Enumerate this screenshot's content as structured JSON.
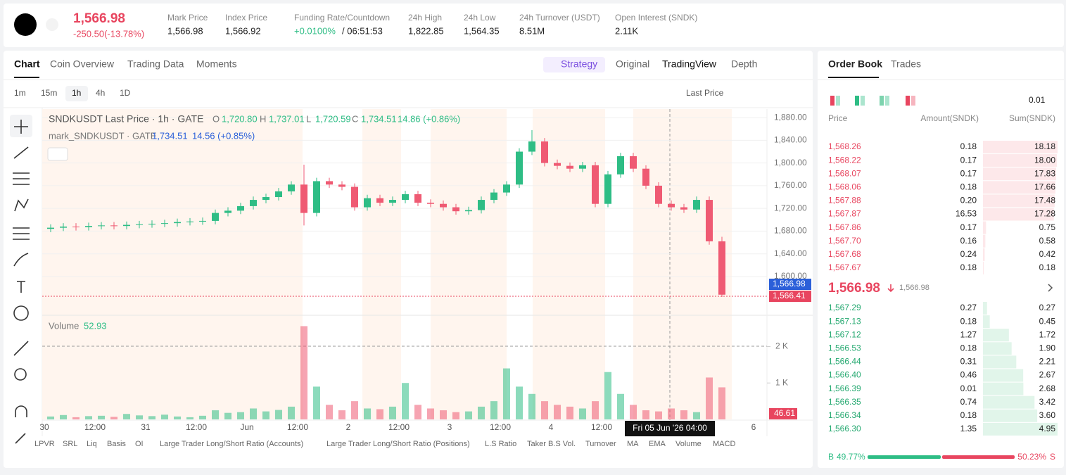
{
  "header": {
    "price": "1,566.98",
    "change": "-250.50(-13.78%)",
    "stats": [
      {
        "label": "Mark Price",
        "value": "1,566.98"
      },
      {
        "label": "Index Price",
        "value": "1,566.92"
      },
      {
        "label": "Funding Rate/Countdown",
        "value": "+0.0100%",
        "countdown": "/ 06:51:53"
      },
      {
        "label": "24h High",
        "value": "1,822.85"
      },
      {
        "label": "24h Low",
        "value": "1,564.35"
      },
      {
        "label": "24h Turnover (USDT)",
        "value": "8.51M"
      },
      {
        "label": "Open Interest (SNDK)",
        "value": "2.11K"
      }
    ]
  },
  "tabs": [
    "Chart",
    "Coin Overview",
    "Trading Data",
    "Moments"
  ],
  "views": [
    "Strategy",
    "Original",
    "TradingView",
    "Depth"
  ],
  "intervals": [
    "1m",
    "15m",
    "1h",
    "4h",
    "1D"
  ],
  "price_source": "Last Price",
  "indicators": [
    "LPVR",
    "SRL",
    "Liq",
    "Basis",
    "OI",
    "Large Trader Long/Short Ratio (Accounts)",
    "Large Trader Long/Short Ratio (Positions)",
    "L.S Ratio",
    "Taker B.S Vol.",
    "Turnover",
    "MA",
    "EMA",
    "Volume",
    "MACD"
  ],
  "chart_data": {
    "type": "candlestick",
    "title": "SNDKUSDT Last Price · 1h · GATE",
    "ohlc_legend": [
      {
        "key": "O",
        "value": "1,720.80"
      },
      {
        "key": "H",
        "value": "1,737.01"
      },
      {
        "key": "L",
        "value": "1,720.59"
      },
      {
        "key": "C",
        "value": "1,734.51"
      }
    ],
    "legend_change": "14.86 (+0.86%)",
    "mark_legend": {
      "name": "mark_SNDKUSDT · GATE",
      "value": "1,734.51",
      "change": "14.56 (+0.85%)"
    },
    "up_color": "#2ebd85",
    "down_color": "#ef5a73",
    "open": [
      1684,
      1686,
      1688,
      1687,
      1689,
      1690,
      1689,
      1691,
      1692,
      1693,
      1694,
      1696,
      1697,
      1698,
      1712,
      1716,
      1724,
      1735,
      1740,
      1750,
      1762,
      1712,
      1768,
      1762,
      1758,
      1722,
      1738,
      1730,
      1735,
      1745,
      1730,
      1728,
      1722,
      1715,
      1717,
      1735,
      1748,
      1762,
      1820,
      1838,
      1800,
      1795,
      1790,
      1796,
      1728,
      1780,
      1812,
      1790,
      1760,
      1728,
      1722,
      1718,
      1735,
      1662
    ],
    "high": [
      1692,
      1694,
      1694,
      1695,
      1696,
      1696,
      1697,
      1698,
      1699,
      1700,
      1702,
      1703,
      1704,
      1718,
      1722,
      1730,
      1741,
      1746,
      1756,
      1768,
      1797,
      1774,
      1774,
      1768,
      1764,
      1744,
      1744,
      1741,
      1751,
      1751,
      1736,
      1734,
      1728,
      1723,
      1741,
      1754,
      1768,
      1826,
      1858,
      1844,
      1806,
      1801,
      1802,
      1802,
      1786,
      1818,
      1818,
      1796,
      1766,
      1734,
      1728,
      1741,
      1741,
      1670
    ],
    "low": [
      1678,
      1680,
      1681,
      1681,
      1683,
      1683,
      1683,
      1685,
      1686,
      1687,
      1688,
      1690,
      1691,
      1692,
      1706,
      1710,
      1718,
      1729,
      1734,
      1744,
      1690,
      1706,
      1756,
      1752,
      1716,
      1716,
      1724,
      1724,
      1729,
      1724,
      1722,
      1716,
      1709,
      1709,
      1711,
      1729,
      1742,
      1756,
      1814,
      1794,
      1789,
      1784,
      1784,
      1722,
      1722,
      1774,
      1784,
      1754,
      1722,
      1716,
      1712,
      1712,
      1656,
      1564
    ],
    "close": [
      1686,
      1688,
      1687,
      1689,
      1690,
      1689,
      1691,
      1692,
      1693,
      1694,
      1696,
      1697,
      1698,
      1712,
      1716,
      1724,
      1735,
      1740,
      1750,
      1762,
      1712,
      1768,
      1762,
      1758,
      1722,
      1738,
      1730,
      1735,
      1745,
      1730,
      1728,
      1722,
      1715,
      1717,
      1735,
      1748,
      1762,
      1820,
      1838,
      1800,
      1795,
      1790,
      1796,
      1728,
      1780,
      1812,
      1790,
      1760,
      1728,
      1722,
      1718,
      1735,
      1662,
      1568
    ],
    "ylim": [
      1533,
      1895
    ],
    "yticks": [
      {
        "value": 1600,
        "label": "1,600.00"
      },
      {
        "value": 1640,
        "label": "1,640.00"
      },
      {
        "value": 1680,
        "label": "1,680.00"
      },
      {
        "value": 1720,
        "label": "1,720.00"
      },
      {
        "value": 1760,
        "label": "1,760.00"
      },
      {
        "value": 1800,
        "label": "1,800.00"
      },
      {
        "value": 1840,
        "label": "1,840.00"
      },
      {
        "value": 1880,
        "label": "1,880.00"
      }
    ],
    "price_tags": [
      "1,566.98",
      "1,566.41"
    ],
    "volume_label": "Volume",
    "volume_value": "52.93",
    "volume_tag": "46.61",
    "volume": [
      80,
      120,
      60,
      90,
      100,
      70,
      150,
      110,
      90,
      130,
      80,
      60,
      100,
      250,
      180,
      200,
      300,
      220,
      260,
      350,
      2560,
      900,
      400,
      250,
      500,
      300,
      280,
      350,
      1000,
      400,
      300,
      250,
      200,
      220,
      350,
      500,
      1400,
      900,
      700,
      500,
      400,
      350,
      300,
      500,
      1300,
      700,
      400,
      250,
      220,
      300,
      250,
      200,
      1150,
      880
    ],
    "vol_ylim": [
      0,
      2820
    ],
    "vol_ticks": [
      {
        "value": 1000,
        "label": "1 K"
      },
      {
        "value": 2000,
        "label": "2 K"
      }
    ],
    "x_labels": [
      "30",
      "12:00",
      "31",
      "12:00",
      "Jun",
      "12:00",
      "2",
      "12:00",
      "3",
      "12:00",
      "4",
      "12:00",
      null,
      null,
      "6"
    ],
    "crosshair_label": "Fri 05 Jun '26  04:00"
  },
  "order_book": {
    "tabs": [
      "Order Book",
      "Trades"
    ],
    "precision": "0.01",
    "columns": [
      "Price",
      "Amount(SNDK)",
      "Sum(SNDK)"
    ],
    "asks": {
      "prices": [
        "1,568.26",
        "1,568.22",
        "1,568.07",
        "1,568.06",
        "1,567.88",
        "1,567.87",
        "1,567.86",
        "1,567.70",
        "1,567.68",
        "1,567.67"
      ],
      "amounts": [
        "0.18",
        "0.17",
        "0.17",
        "0.18",
        "0.20",
        "16.53",
        "0.17",
        "0.16",
        "0.24",
        "0.18"
      ],
      "sums": [
        18.18,
        18.0,
        17.83,
        17.66,
        17.48,
        17.28,
        0.75,
        0.58,
        0.42,
        0.18
      ],
      "sum_labels": [
        "18.18",
        "18.00",
        "17.83",
        "17.66",
        "17.48",
        "17.28",
        "0.75",
        "0.58",
        "0.42",
        "0.18"
      ]
    },
    "mid_price": "1,566.98",
    "mark_price": "1,566.98",
    "bids": {
      "prices": [
        "1,567.29",
        "1,567.13",
        "1,567.12",
        "1,566.53",
        "1,566.44",
        "1,566.40",
        "1,566.39",
        "1,566.35",
        "1,566.34",
        "1,566.30"
      ],
      "amounts": [
        "0.27",
        "0.18",
        "1.27",
        "0.18",
        "0.31",
        "0.46",
        "0.01",
        "0.74",
        "0.18",
        "1.35"
      ],
      "sums": [
        0.27,
        0.45,
        1.72,
        1.9,
        2.21,
        2.67,
        2.68,
        3.42,
        3.6,
        4.95
      ],
      "sum_labels": [
        "0.27",
        "0.45",
        "1.72",
        "1.90",
        "2.21",
        "2.67",
        "2.68",
        "3.42",
        "3.60",
        "4.95"
      ]
    },
    "ratio": {
      "buy_key": "B",
      "buy": {
        "value": 49.77,
        "label": "49.77%"
      },
      "sell": {
        "value": 50.23,
        "label": "50.23%"
      },
      "sell_key": "S"
    }
  }
}
